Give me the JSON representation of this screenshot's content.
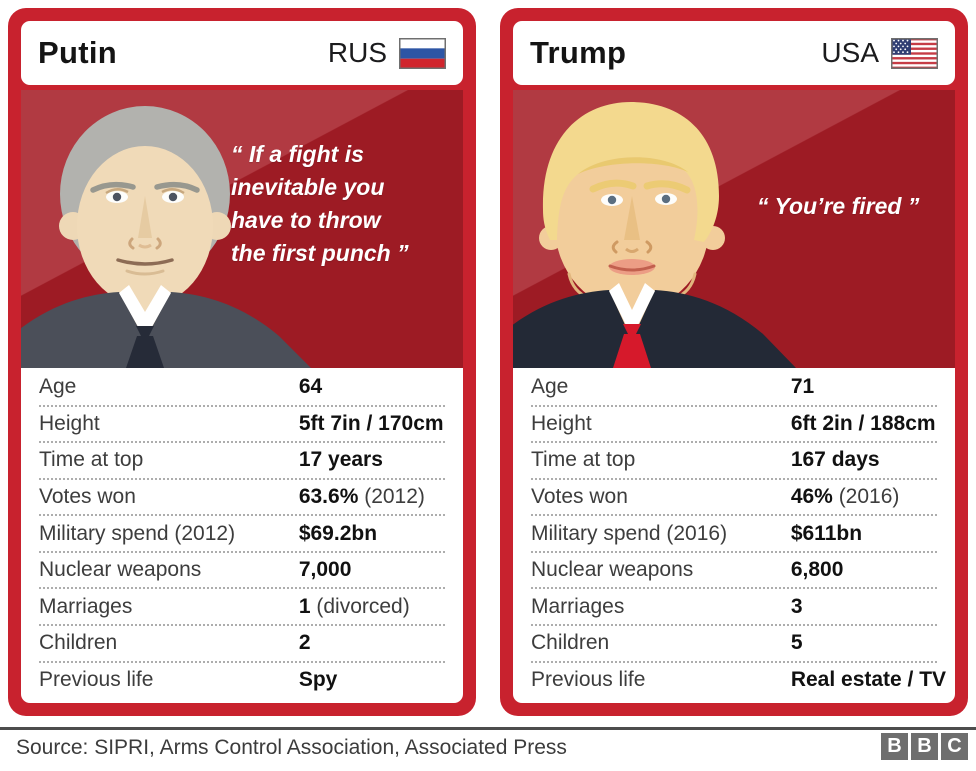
{
  "colors": {
    "card_frame_red": "#c8222e",
    "portrait_dark_red": "#9d1b24",
    "portrait_light_red": "#b13a42",
    "trump_tie_red": "#d6192b",
    "bbc_logo_gray": "#6e6e6e"
  },
  "cards": [
    {
      "id": "putin",
      "name": "Putin",
      "country": "RUS",
      "flag": "russia-flag",
      "quote_lines": [
        "“ If a fight is",
        "inevitable you",
        "have to throw",
        "the first punch ”"
      ],
      "stats": [
        {
          "label": "Age",
          "value": "64",
          "note": ""
        },
        {
          "label": "Height",
          "value": "5ft 7in / 170cm",
          "note": ""
        },
        {
          "label": "Time at top",
          "value": "17 years",
          "note": ""
        },
        {
          "label": "Votes won",
          "value": "63.6%",
          "note": "(2012)"
        },
        {
          "label": "Military spend (2012)",
          "value": "$69.2bn",
          "note": ""
        },
        {
          "label": "Nuclear weapons",
          "value": "7,000",
          "note": ""
        },
        {
          "label": "Marriages",
          "value": "1",
          "note": "(divorced)"
        },
        {
          "label": "Children",
          "value": "2",
          "note": ""
        },
        {
          "label": "Previous life",
          "value": "Spy",
          "note": ""
        }
      ]
    },
    {
      "id": "trump",
      "name": "Trump",
      "country": "USA",
      "flag": "usa-flag",
      "quote_lines": [
        "“ You’re fired ”"
      ],
      "stats": [
        {
          "label": "Age",
          "value": "71",
          "note": ""
        },
        {
          "label": "Height",
          "value": "6ft 2in / 188cm",
          "note": ""
        },
        {
          "label": "Time at top",
          "value": "167 days",
          "note": ""
        },
        {
          "label": "Votes won",
          "value": "46%",
          "note": "(2016)"
        },
        {
          "label": "Military spend (2016)",
          "value": "$611bn",
          "note": ""
        },
        {
          "label": "Nuclear weapons",
          "value": "6,800",
          "note": ""
        },
        {
          "label": "Marriages",
          "value": "3",
          "note": ""
        },
        {
          "label": "Children",
          "value": "5",
          "note": ""
        },
        {
          "label": "Previous life",
          "value": "Real estate / TV",
          "note": ""
        }
      ]
    }
  ],
  "footer": {
    "source": "Source: SIPRI, Arms Control Association, Associated Press",
    "logo_letters": [
      "B",
      "B",
      "C"
    ]
  },
  "chart_data": {
    "type": "table",
    "title": "Putin vs Trump comparison cards",
    "categories": [
      "Age",
      "Height",
      "Time at top",
      "Votes won",
      "Military spend",
      "Nuclear weapons",
      "Marriages",
      "Children",
      "Previous life"
    ],
    "series": [
      {
        "name": "Putin (RUS)",
        "values": [
          "64",
          "5ft 7in / 170cm",
          "17 years",
          "63.6% (2012)",
          "$69.2bn (2012)",
          "7,000",
          "1 (divorced)",
          "2",
          "Spy"
        ]
      },
      {
        "name": "Trump (USA)",
        "values": [
          "71",
          "6ft 2in / 188cm",
          "167 days",
          "46% (2016)",
          "$611bn (2016)",
          "6,800",
          "3",
          "5",
          "Real estate / TV"
        ]
      }
    ],
    "legend_position": "none",
    "grid": false
  }
}
